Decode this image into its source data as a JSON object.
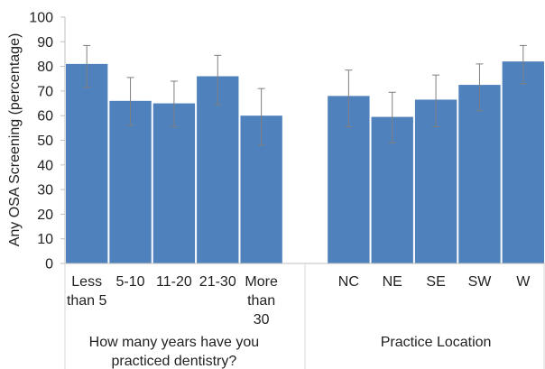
{
  "chart_data": {
    "type": "bar",
    "ylabel": "Any OSA Screening (percentage)",
    "ylim": [
      0,
      100
    ],
    "yticks": [
      0,
      10,
      20,
      30,
      40,
      50,
      60,
      70,
      80,
      90,
      100
    ],
    "grid": false,
    "bar_color": "#4F81BD",
    "errorbar_color": "#7F7F7F",
    "categories": [
      [
        "Less",
        "than 5"
      ],
      [
        "5-10"
      ],
      [
        "11-20"
      ],
      [
        "21-30"
      ],
      [
        "More",
        "than",
        "30"
      ],
      [],
      [
        "NC"
      ],
      [
        "NE"
      ],
      [
        "SE"
      ],
      [
        "SW"
      ],
      [
        "W"
      ]
    ],
    "values": [
      81,
      66,
      65,
      76,
      60,
      null,
      68,
      59.5,
      66.5,
      72.5,
      82
    ],
    "err_upper": [
      88.5,
      75.5,
      74,
      84.5,
      71,
      null,
      78.5,
      69.5,
      76.5,
      81,
      88.5
    ],
    "err_lower": [
      71.5,
      56,
      55.5,
      64.5,
      48,
      null,
      55.5,
      49,
      55.5,
      62,
      73
    ],
    "groups": [
      {
        "label": [
          "How many years have you",
          "practiced dentistry?"
        ],
        "start": 0,
        "end": 4
      },
      {
        "label": [
          "Practice Location"
        ],
        "start": 6,
        "end": 10
      }
    ]
  }
}
